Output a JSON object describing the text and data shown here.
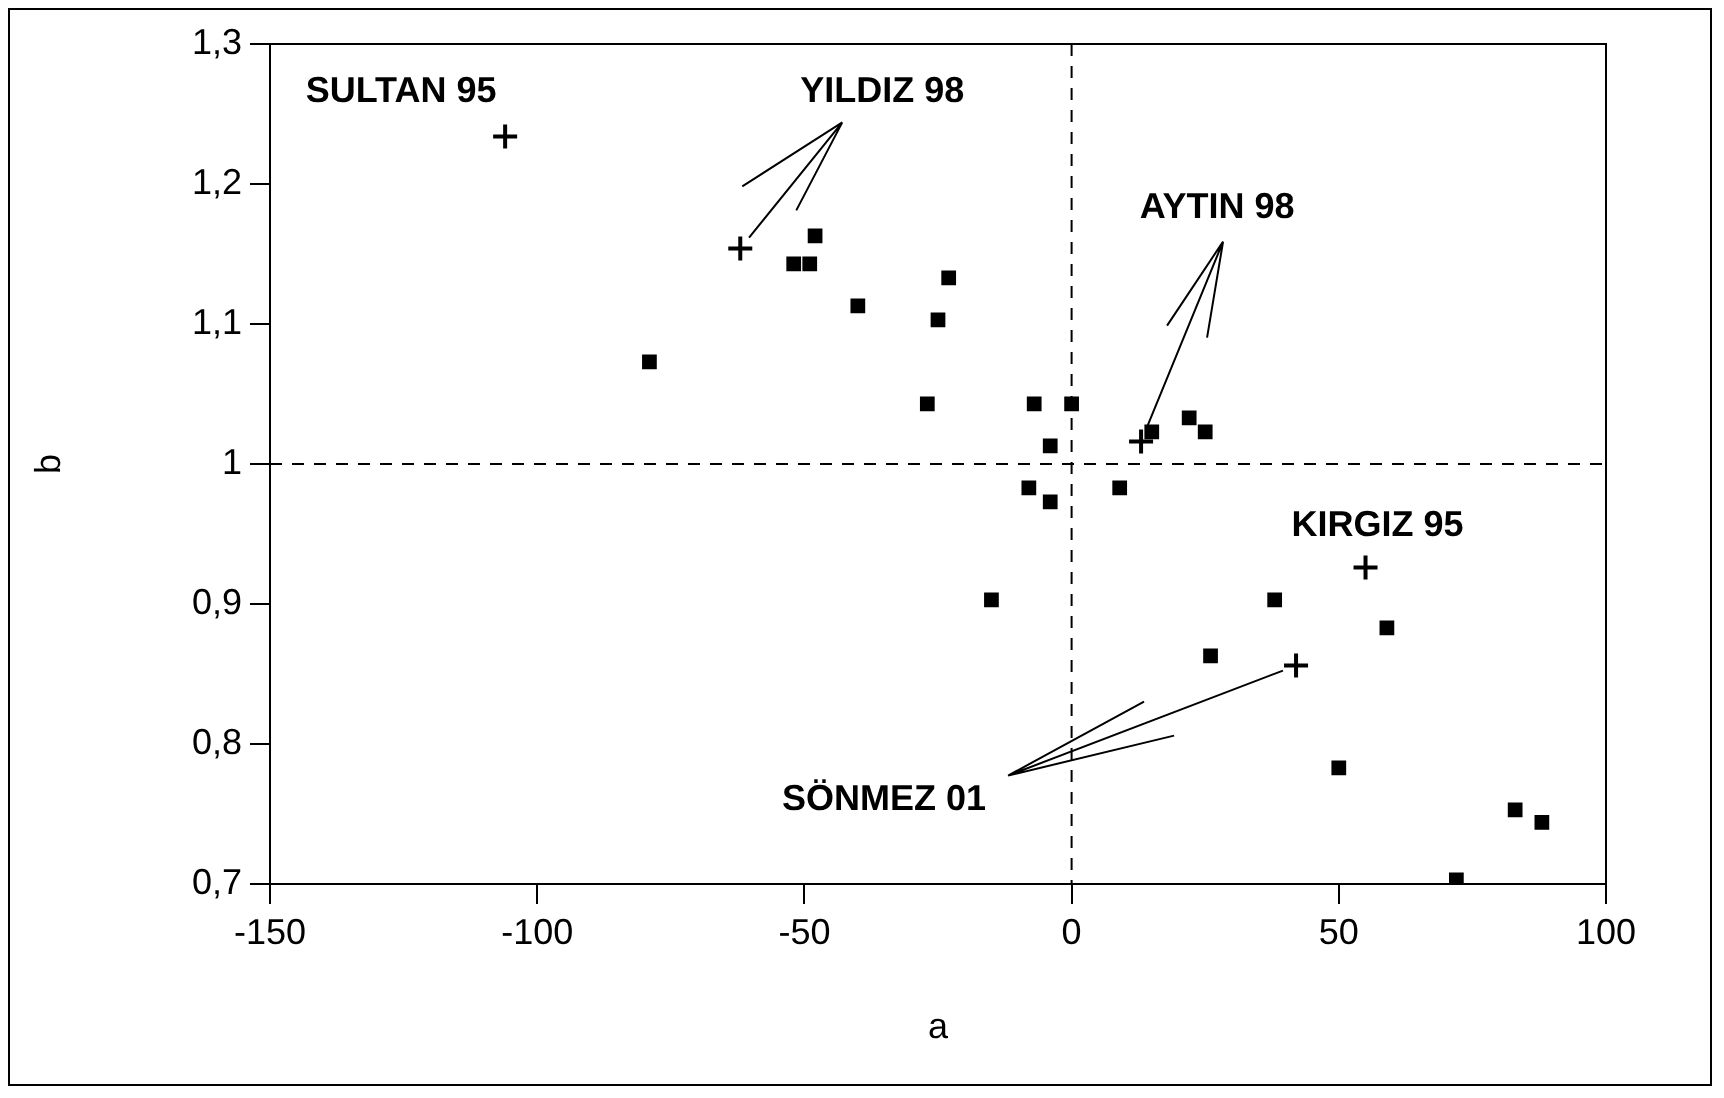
{
  "chart_data": {
    "type": "scatter",
    "xlabel": "a",
    "ylabel": "b",
    "xlim": [
      -150,
      100
    ],
    "xticks": [
      -150,
      -100,
      -50,
      0,
      50,
      100
    ],
    "ylim": [
      0.7,
      1.3
    ],
    "yticks": [
      {
        "value": 0.7,
        "label": "0,7"
      },
      {
        "value": 0.8,
        "label": "0,8"
      },
      {
        "value": 0.9,
        "label": "0,9"
      },
      {
        "value": 1,
        "label": "1"
      },
      {
        "value": 1.1,
        "label": "1,1"
      },
      {
        "value": 1.2,
        "label": "1,2"
      },
      {
        "value": 1.3,
        "label": "1,3"
      }
    ],
    "grid": false,
    "legend": false,
    "series": [
      {
        "color": "#000000",
        "marker": "square",
        "x": [
          -79,
          -52,
          -49,
          -48,
          -40,
          -23,
          -25,
          -27,
          -7,
          0,
          -4,
          -8,
          -4,
          9,
          15,
          22,
          25,
          -15,
          38,
          59,
          26,
          50,
          83,
          72,
          88
        ],
        "values": [
          1.073,
          1.143,
          1.143,
          1.163,
          1.113,
          1.133,
          1.103,
          1.043,
          1.043,
          1.043,
          1.013,
          0.983,
          0.973,
          0.983,
          1.023,
          1.033,
          1.023,
          0.903,
          0.903,
          0.883,
          0.863,
          0.783,
          0.753,
          0.703,
          0.744
        ]
      },
      {
        "color": "#000000",
        "marker": "cross",
        "x": [
          -106,
          -62,
          13,
          55,
          42
        ],
        "values": [
          1.234,
          1.154,
          1.016,
          0.926,
          0.856
        ]
      }
    ],
    "ref_lines": [
      {
        "axis": "x",
        "value": 0,
        "line_style": "dashed"
      },
      {
        "axis": "y",
        "value": 1,
        "line_style": "dashed"
      }
    ],
    "annotations": [
      {
        "text": "SULTAN 95",
        "x": -106,
        "y": 1.234
      },
      {
        "text": "YILDIZ 98",
        "x": -62,
        "y": 1.154
      },
      {
        "text": "AYTIN 98",
        "x": 13,
        "y": 1.016
      },
      {
        "text": "KIRGIZ 95",
        "x": 55,
        "y": 0.926
      },
      {
        "text": "SÖNMEZ 01",
        "x": 42,
        "y": 0.856
      }
    ]
  }
}
